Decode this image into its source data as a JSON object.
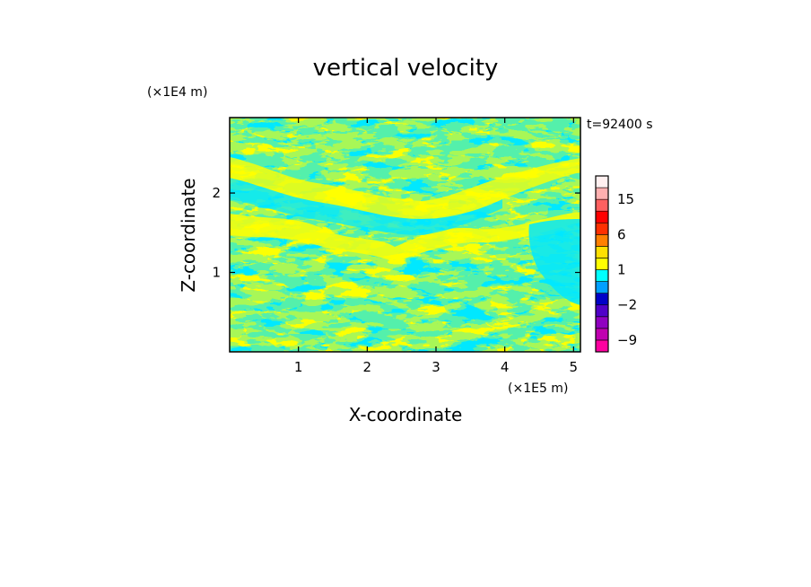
{
  "chart_data": {
    "type": "heatmap",
    "title": "vertical velocity",
    "xlabel": "X-coordinate",
    "ylabel": "Z-coordinate",
    "x_scale_label": "(×1E5 m)",
    "y_scale_label": "(×1E4 m)",
    "time_label": "t=92400 s",
    "xlim": [
      0,
      5.1
    ],
    "ylim": [
      0,
      2.95
    ],
    "x_ticks": [
      {
        "value": 1,
        "label": "1"
      },
      {
        "value": 2,
        "label": "2"
      },
      {
        "value": 3,
        "label": "3"
      },
      {
        "value": 4,
        "label": "4"
      },
      {
        "value": 5,
        "label": "5"
      }
    ],
    "y_ticks": [
      {
        "value": 1,
        "label": "1"
      },
      {
        "value": 2,
        "label": "2"
      }
    ],
    "field_colors": {
      "positive": "#ffff00",
      "negative": "#00e8ff"
    },
    "colorbar": {
      "min": -12,
      "max": 21,
      "levels": [
        -12,
        -9,
        -6,
        -3,
        -2,
        -1,
        0,
        1,
        2,
        3,
        6,
        9,
        12,
        15,
        18,
        21
      ],
      "colors": [
        "#ff00a0",
        "#c000b0",
        "#9000c0",
        "#5000c8",
        "#0000c8",
        "#00a0ff",
        "#00ffff",
        "#ffff00",
        "#ffe000",
        "#ff8000",
        "#ff3000",
        "#ff0000",
        "#ff6060",
        "#ffb0b0",
        "#fff0f0"
      ],
      "tick_labels": [
        {
          "value": 15,
          "label": "15"
        },
        {
          "value": 6,
          "label": "6"
        },
        {
          "value": 1,
          "label": "1"
        },
        {
          "value": -2,
          "label": "−2"
        },
        {
          "value": -9,
          "label": "−9"
        }
      ]
    }
  }
}
